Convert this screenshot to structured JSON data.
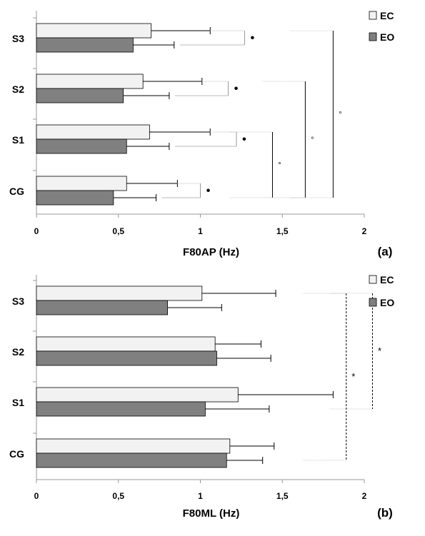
{
  "colors": {
    "ec_fill": "#f2f2f2",
    "eo_fill": "#808080",
    "bar_stroke": "#000000",
    "axis": "#999999",
    "bracket": "#000000"
  },
  "chart_data": [
    {
      "type": "bar",
      "orientation": "horizontal",
      "panel_label": "(a)",
      "xlabel": "F80AP (Hz)",
      "ylabel": "",
      "xlim": [
        0,
        2
      ],
      "x_ticks": [
        "0",
        "0,5",
        "1",
        "1,5",
        "2"
      ],
      "x_tick_values": [
        0,
        0.5,
        1,
        1.5,
        2
      ],
      "grid": false,
      "legend_position": "top-right",
      "categories": [
        "S3",
        "S2",
        "S1",
        "CG"
      ],
      "series": [
        {
          "name": "EC",
          "color": "#f2f2f2",
          "values": [
            0.7,
            0.65,
            0.69,
            0.55
          ],
          "error": [
            0.36,
            0.36,
            0.37,
            0.31
          ]
        },
        {
          "name": "EO",
          "color": "#808080",
          "values": [
            0.59,
            0.53,
            0.55,
            0.47
          ],
          "error": [
            0.25,
            0.28,
            0.26,
            0.26
          ]
        }
      ],
      "annotations": [
        {
          "type": "pair-bracket",
          "category": "S3",
          "x": 1.27,
          "symbol": "•"
        },
        {
          "type": "pair-bracket",
          "category": "S2",
          "x": 1.17,
          "symbol": "•"
        },
        {
          "type": "pair-bracket",
          "category": "S1",
          "x": 1.22,
          "symbol": "•"
        },
        {
          "type": "pair-bracket",
          "category": "CG",
          "x": 1.0,
          "symbol": "•"
        },
        {
          "type": "group-bracket",
          "from": "S1",
          "to": "CG",
          "x": 1.44,
          "symbol": "°",
          "line": "solid"
        },
        {
          "type": "group-bracket",
          "from": "S2",
          "to": "CG",
          "x": 1.64,
          "symbol": "°",
          "line": "solid"
        },
        {
          "type": "group-bracket",
          "from": "S3",
          "to": "CG",
          "x": 1.81,
          "symbol": "°",
          "line": "solid"
        }
      ]
    },
    {
      "type": "bar",
      "orientation": "horizontal",
      "panel_label": "(b)",
      "xlabel": "F80ML (Hz)",
      "ylabel": "",
      "xlim": [
        0,
        2
      ],
      "x_ticks": [
        "0",
        "0,5",
        "1",
        "1,5",
        "2"
      ],
      "x_tick_values": [
        0,
        0.5,
        1,
        1.5,
        2
      ],
      "grid": false,
      "legend_position": "top-right",
      "categories": [
        "S3",
        "S2",
        "S1",
        "CG"
      ],
      "series": [
        {
          "name": "EC",
          "color": "#f2f2f2",
          "values": [
            1.01,
            1.09,
            1.23,
            1.18
          ],
          "error": [
            0.45,
            0.28,
            0.58,
            0.27
          ]
        },
        {
          "name": "EO",
          "color": "#808080",
          "values": [
            0.8,
            1.1,
            1.03,
            1.16
          ],
          "error": [
            0.33,
            0.33,
            0.39,
            0.22
          ]
        }
      ],
      "annotations": [
        {
          "type": "group-bracket",
          "from": "S3",
          "to": "CG",
          "x": 1.89,
          "symbol": "*",
          "line": "dashed"
        },
        {
          "type": "group-bracket",
          "from": "S3",
          "to": "S1",
          "x": 2.05,
          "symbol": "*",
          "line": "dashed"
        }
      ]
    }
  ]
}
